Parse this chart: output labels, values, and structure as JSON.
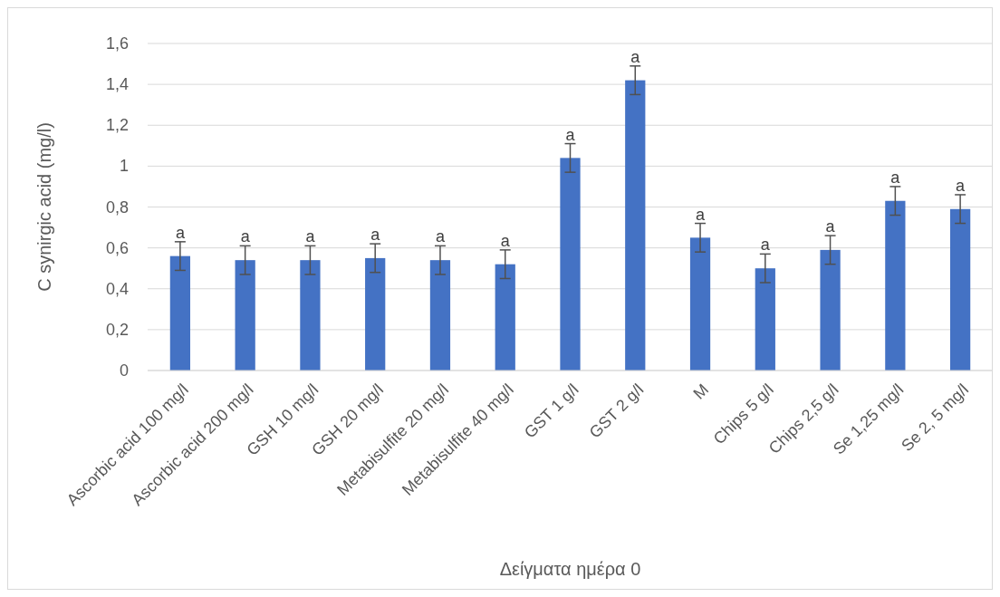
{
  "chart_data": {
    "type": "bar",
    "xlabel": "Δείγματα ημέρα 0",
    "ylabel": "C synirgic acid (mg/l)",
    "categories": [
      "Ascorbic acid 100 mg/l",
      "Ascorbic acid 200 mg/l",
      "GSH 10 mg/l",
      "GSH 20 mg/l",
      "Metabisulfite 20 mg/l",
      "Metabisulfite 40 mg/l",
      "GST 1 g/l",
      "GST 2 g/l",
      "M",
      "Chips 5 g/l",
      "Chips 2,5 g/l",
      "Se 1,25 mg/l",
      "Se 2, 5 mg/l"
    ],
    "values": [
      0.56,
      0.54,
      0.54,
      0.55,
      0.54,
      0.52,
      1.04,
      1.42,
      0.65,
      0.5,
      0.59,
      0.83,
      0.79
    ],
    "errors": [
      0.07,
      0.07,
      0.07,
      0.07,
      0.07,
      0.07,
      0.07,
      0.07,
      0.07,
      0.07,
      0.07,
      0.07,
      0.07
    ],
    "color": "#4472c4",
    "ylim": [
      0,
      1.6
    ],
    "yticks": [
      0,
      {
        "value": 0.2,
        "label": "0,2"
      },
      {
        "value": 0.4,
        "label": "0,4"
      },
      {
        "value": 0.6,
        "label": "0,6"
      },
      {
        "value": 0.8,
        "label": "0,8"
      },
      1,
      {
        "value": 1.2,
        "label": "1,2"
      },
      {
        "value": 1.4,
        "label": "1,4"
      },
      {
        "value": 1.6,
        "label": "1,6"
      }
    ],
    "grid": "y",
    "annotations": [
      {
        "text": "a",
        "x": "Ascorbic acid 100 mg/l",
        "y": 0.63
      },
      {
        "text": "a",
        "x": "Ascorbic acid 200 mg/l",
        "y": 0.61
      },
      {
        "text": "a",
        "x": "GSH 10 mg/l",
        "y": 0.61
      },
      {
        "text": "a",
        "x": "GSH 20 mg/l",
        "y": 0.62
      },
      {
        "text": "a",
        "x": "Metabisulfite 20 mg/l",
        "y": 0.61
      },
      {
        "text": "a",
        "x": "Metabisulfite 40 mg/l",
        "y": 0.59
      },
      {
        "text": "a",
        "x": "GST 1 g/l",
        "y": 1.11
      },
      {
        "text": "a",
        "x": "GST 2 g/l",
        "y": 1.49
      },
      {
        "text": "a",
        "x": "M",
        "y": 0.72
      },
      {
        "text": "a",
        "x": "Chips 5 g/l",
        "y": 0.57
      },
      {
        "text": "a",
        "x": "Chips 2,5 g/l",
        "y": 0.66
      },
      {
        "text": "a",
        "x": "Se 1,25 mg/l",
        "y": 0.9
      },
      {
        "text": "a",
        "x": "Se 2, 5 mg/l",
        "y": 0.86
      }
    ]
  }
}
